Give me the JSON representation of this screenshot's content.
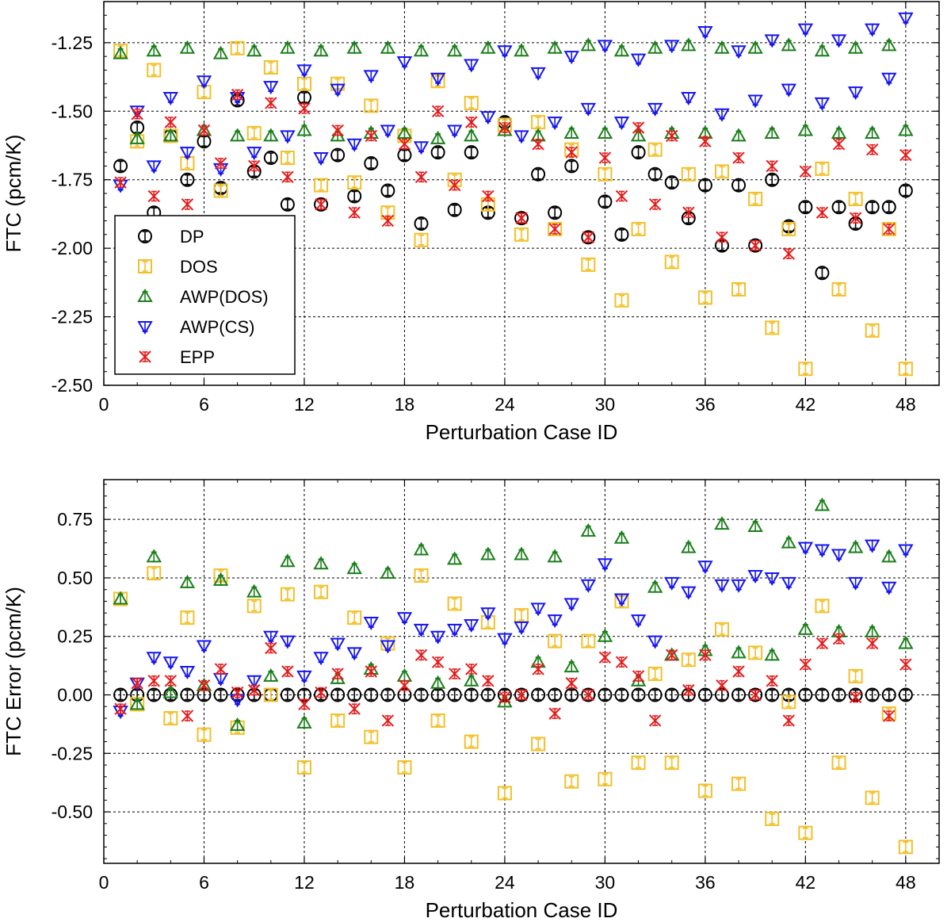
{
  "chart_data": [
    {
      "type": "scatter",
      "xlabel": "Perturbation Case ID",
      "ylabel": "FTC (pcm/K)",
      "xlim": [
        0,
        50
      ],
      "ylim": [
        -2.5,
        -1.1
      ],
      "xticks": [
        0,
        6,
        12,
        18,
        24,
        30,
        36,
        42,
        48
      ],
      "yticks": [
        -1.25,
        -1.5,
        -1.75,
        -2.0,
        -2.25,
        -2.5
      ],
      "ytick_labels": [
        "-1.25",
        "-1.50",
        "-1.75",
        "-2.00",
        "-2.25",
        "-2.50"
      ],
      "grid": true,
      "legend_position": "lower-left",
      "x": [
        1,
        2,
        3,
        4,
        5,
        6,
        7,
        8,
        9,
        10,
        11,
        12,
        13,
        14,
        15,
        16,
        17,
        18,
        19,
        20,
        21,
        22,
        23,
        24,
        25,
        26,
        27,
        28,
        29,
        30,
        31,
        32,
        33,
        34,
        35,
        36,
        37,
        38,
        39,
        40,
        41,
        42,
        43,
        44,
        45,
        46,
        47,
        48
      ],
      "series": [
        {
          "name": "DP",
          "color": "#000000",
          "marker": "circle",
          "values": [
            -1.7,
            -1.56,
            -1.87,
            -1.59,
            -1.75,
            -1.61,
            -1.78,
            -1.46,
            -1.72,
            -1.67,
            -1.84,
            -1.45,
            -1.84,
            -1.66,
            -1.81,
            -1.69,
            -1.79,
            -1.66,
            -1.91,
            -1.65,
            -1.86,
            -1.65,
            -1.87,
            -1.54,
            -1.89,
            -1.73,
            -1.87,
            -1.7,
            -1.96,
            -1.83,
            -1.95,
            -1.65,
            -1.73,
            -1.76,
            -1.89,
            -1.77,
            -1.99,
            -1.77,
            -1.99,
            -1.75,
            -1.92,
            -1.85,
            -2.09,
            -1.85,
            -1.91,
            -1.85,
            -1.85,
            -1.79
          ]
        },
        {
          "name": "DOS",
          "color": "#f2c029",
          "marker": "square",
          "values": [
            -1.28,
            -1.61,
            -1.35,
            -1.59,
            -1.69,
            -1.43,
            -1.79,
            -1.27,
            -1.58,
            -1.34,
            -1.67,
            -1.4,
            -1.77,
            -1.4,
            -1.76,
            -1.48,
            -1.87,
            -1.59,
            -1.97,
            -1.39,
            -1.75,
            -1.47,
            -1.84,
            -1.55,
            -1.95,
            -1.54,
            -1.93,
            -1.64,
            -2.06,
            -1.73,
            -2.19,
            -1.93,
            -1.64,
            -2.05,
            -1.73,
            -2.18,
            -1.72,
            -2.15,
            -1.82,
            -2.29,
            -1.93,
            -2.44,
            -1.71,
            -2.15,
            -1.82,
            -2.3,
            -1.93,
            -2.44
          ]
        },
        {
          "name": "AWP(DOS)",
          "color": "#1a7f1a",
          "marker": "triangle-up",
          "values": [
            -1.29,
            -1.6,
            -1.28,
            -1.59,
            -1.27,
            -1.57,
            -1.29,
            -1.59,
            -1.28,
            -1.59,
            -1.27,
            -1.57,
            -1.28,
            -1.59,
            -1.27,
            -1.58,
            -1.27,
            -1.58,
            -1.28,
            -1.6,
            -1.28,
            -1.59,
            -1.27,
            -1.57,
            -1.28,
            -1.59,
            -1.27,
            -1.58,
            -1.26,
            -1.58,
            -1.28,
            -1.59,
            -1.27,
            -1.58,
            -1.26,
            -1.58,
            -1.27,
            -1.59,
            -1.27,
            -1.58,
            -1.26,
            -1.57,
            -1.28,
            -1.58,
            -1.27,
            -1.58,
            -1.26,
            -1.57
          ]
        },
        {
          "name": "AWP(CS)",
          "color": "#1515f0",
          "marker": "triangle-down",
          "values": [
            -1.77,
            -1.5,
            -1.7,
            -1.45,
            -1.65,
            -1.39,
            -1.71,
            -1.45,
            -1.65,
            -1.41,
            -1.59,
            -1.35,
            -1.67,
            -1.42,
            -1.62,
            -1.37,
            -1.57,
            -1.32,
            -1.63,
            -1.38,
            -1.57,
            -1.33,
            -1.52,
            -1.28,
            -1.59,
            -1.36,
            -1.54,
            -1.3,
            -1.49,
            -1.26,
            -1.54,
            -1.31,
            -1.49,
            -1.26,
            -1.45,
            -1.21,
            -1.51,
            -1.28,
            -1.46,
            -1.24,
            -1.42,
            -1.2,
            -1.47,
            -1.24,
            -1.43,
            -1.2,
            -1.38,
            -1.16
          ]
        },
        {
          "name": "EPP",
          "color": "#e61919",
          "marker": "x",
          "values": [
            -1.76,
            -1.51,
            -1.81,
            -1.54,
            -1.84,
            -1.57,
            -1.69,
            -1.44,
            -1.7,
            -1.47,
            -1.74,
            -1.49,
            -1.84,
            -1.57,
            -1.87,
            -1.59,
            -1.9,
            -1.62,
            -1.74,
            -1.5,
            -1.77,
            -1.54,
            -1.81,
            -1.56,
            -1.89,
            -1.62,
            -1.93,
            -1.65,
            -1.96,
            -1.67,
            -1.81,
            -1.56,
            -1.84,
            -1.59,
            -1.87,
            -1.61,
            -1.96,
            -1.67,
            -1.99,
            -1.7,
            -2.02,
            -1.72,
            -1.87,
            -1.62,
            -1.89,
            -1.64,
            -1.93,
            -1.66
          ]
        }
      ],
      "legend": [
        "DP",
        "DOS",
        "AWP(DOS)",
        "AWP(CS)",
        "EPP"
      ]
    },
    {
      "type": "scatter",
      "xlabel": "Perturbation Case ID",
      "ylabel": "FTC Error (pcm/K)",
      "xlim": [
        0,
        50
      ],
      "ylim": [
        -0.72,
        0.92
      ],
      "xticks": [
        0,
        6,
        12,
        18,
        24,
        30,
        36,
        42,
        48
      ],
      "yticks": [
        0.75,
        0.5,
        0.25,
        0.0,
        -0.25,
        -0.5
      ],
      "ytick_labels": [
        "0.75",
        "0.50",
        "0.25",
        "0.00",
        "-0.25",
        "-0.50"
      ],
      "grid": true,
      "x": [
        1,
        2,
        3,
        4,
        5,
        6,
        7,
        8,
        9,
        10,
        11,
        12,
        13,
        14,
        15,
        16,
        17,
        18,
        19,
        20,
        21,
        22,
        23,
        24,
        25,
        26,
        27,
        28,
        29,
        30,
        31,
        32,
        33,
        34,
        35,
        36,
        37,
        38,
        39,
        40,
        41,
        42,
        43,
        44,
        45,
        46,
        47,
        48
      ],
      "series": [
        {
          "name": "DP",
          "color": "#000000",
          "marker": "circle",
          "values": [
            0,
            0,
            0,
            0,
            0,
            0,
            0,
            0,
            0,
            0,
            0,
            0,
            0,
            0,
            0,
            0,
            0,
            0,
            0,
            0,
            0,
            0,
            0,
            0,
            0,
            0,
            0,
            0,
            0,
            0,
            0,
            0,
            0,
            0,
            0,
            0,
            0,
            0,
            0,
            0,
            0,
            0,
            0,
            0,
            0,
            0,
            0,
            0
          ]
        },
        {
          "name": "DOS",
          "color": "#f2c029",
          "marker": "square",
          "values": [
            0.41,
            -0.04,
            0.52,
            -0.1,
            0.33,
            -0.17,
            0.51,
            -0.14,
            0.38,
            0.0,
            0.43,
            -0.31,
            0.44,
            -0.11,
            0.33,
            -0.18,
            0.22,
            -0.31,
            0.51,
            -0.11,
            0.39,
            -0.2,
            0.31,
            -0.42,
            0.34,
            -0.21,
            0.23,
            -0.37,
            0.23,
            -0.36,
            0.4,
            -0.29,
            0.09,
            -0.29,
            0.15,
            -0.41,
            0.28,
            -0.38,
            0.18,
            -0.53,
            -0.03,
            -0.59,
            0.38,
            -0.29,
            0.08,
            -0.44,
            -0.08,
            -0.65
          ]
        },
        {
          "name": "AWP(DOS)",
          "color": "#1a7f1a",
          "marker": "triangle-up",
          "values": [
            0.41,
            -0.04,
            0.59,
            0.01,
            0.48,
            0.04,
            0.49,
            -0.13,
            0.44,
            0.08,
            0.57,
            -0.12,
            0.56,
            0.07,
            0.54,
            0.11,
            0.52,
            0.08,
            0.62,
            0.05,
            0.58,
            0.06,
            0.6,
            -0.03,
            0.6,
            0.14,
            0.59,
            0.12,
            0.7,
            0.25,
            0.67,
            0.06,
            0.46,
            0.17,
            0.63,
            0.19,
            0.73,
            0.18,
            0.72,
            0.17,
            0.65,
            0.28,
            0.81,
            0.27,
            0.63,
            0.27,
            0.59,
            0.22
          ]
        },
        {
          "name": "AWP(CS)",
          "color": "#1515f0",
          "marker": "triangle-down",
          "values": [
            -0.07,
            0.05,
            0.16,
            0.14,
            0.1,
            0.21,
            0.07,
            -0.02,
            0.06,
            0.25,
            0.23,
            0.08,
            0.16,
            0.22,
            0.18,
            0.31,
            0.21,
            0.33,
            0.28,
            0.25,
            0.28,
            0.3,
            0.35,
            0.24,
            0.29,
            0.37,
            0.32,
            0.39,
            0.47,
            0.56,
            0.41,
            0.32,
            0.23,
            0.48,
            0.44,
            0.55,
            0.47,
            0.47,
            0.51,
            0.5,
            0.48,
            0.63,
            0.62,
            0.6,
            0.48,
            0.64,
            0.46,
            0.62
          ]
        },
        {
          "name": "EPP",
          "color": "#e61919",
          "marker": "x",
          "values": [
            -0.06,
            0.05,
            0.06,
            0.06,
            -0.09,
            0.04,
            0.11,
            0.01,
            0.02,
            0.2,
            0.1,
            -0.04,
            0.01,
            0.09,
            -0.06,
            0.1,
            -0.11,
            0.04,
            0.17,
            0.14,
            0.09,
            0.11,
            0.06,
            -0.01,
            0.0,
            0.11,
            -0.08,
            0.05,
            0.0,
            0.16,
            0.14,
            0.08,
            -0.11,
            0.17,
            0.02,
            0.17,
            0.04,
            0.1,
            0.0,
            0.06,
            -0.11,
            0.13,
            0.22,
            0.24,
            -0.01,
            0.22,
            -0.09,
            0.13
          ]
        }
      ]
    }
  ]
}
